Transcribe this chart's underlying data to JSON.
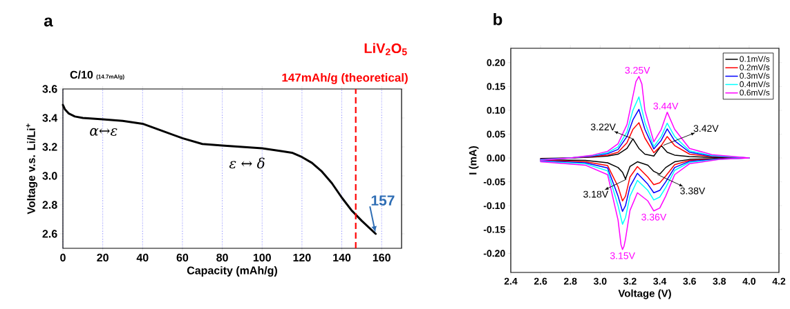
{
  "chart_data": [
    {
      "type": "line",
      "title": "C/10",
      "subtitle": "(14.7mA/g)",
      "xlabel": "Capacity (mAh/g)",
      "ylabel": "Voltage v.s. Li/Li$^{+}$",
      "x": [
        0,
        1,
        3,
        6,
        10,
        20,
        30,
        40,
        50,
        60,
        70,
        80,
        90,
        100,
        110,
        115,
        120,
        125,
        130,
        135,
        140,
        145,
        150,
        157
      ],
      "series": [
        {
          "color": "#000000",
          "values": [
            3.49,
            3.46,
            3.43,
            3.41,
            3.4,
            3.39,
            3.38,
            3.36,
            3.31,
            3.26,
            3.22,
            3.21,
            3.2,
            3.19,
            3.17,
            3.16,
            3.13,
            3.09,
            3.03,
            2.95,
            2.85,
            2.76,
            2.69,
            2.6
          ]
        }
      ],
      "xlim": [
        0,
        170
      ],
      "ylim": [
        2.5,
        3.6
      ],
      "xticks": [
        0,
        20,
        40,
        60,
        80,
        100,
        120,
        140,
        160
      ],
      "yticks": [
        2.6,
        2.8,
        {
          "value": 3.0,
          "label": "3.0"
        },
        3.2,
        3.4,
        3.6
      ],
      "grid": "x",
      "marker": "none",
      "line_style": "solid",
      "ref_lines": [
        {
          "axis": "x",
          "value": 147,
          "label": "147mAh/g (theoretical)",
          "color": "#ff0000",
          "line_style": "dashed"
        }
      ],
      "annotations": [
        "a",
        "LiV$_{2}$O$_{5}$",
        "α↔ε",
        "ε ↔ δ",
        {
          "text": "157",
          "x": 157,
          "y": 2.6
        }
      ]
    },
    {
      "type": "line",
      "xlabel": "Voltage (V)",
      "ylabel": "I (mA)",
      "series": [
        {
          "name": "0.1mV/s",
          "color": "#000000",
          "x": [
            2.6,
            2.8,
            2.95,
            3.05,
            3.12,
            3.18,
            3.22,
            3.26,
            3.3,
            3.36,
            3.41,
            3.45,
            3.5,
            3.6,
            3.75,
            4.0,
            4.0,
            3.8,
            3.6,
            3.5,
            3.44,
            3.4,
            3.36,
            3.32,
            3.25,
            3.2,
            3.17,
            3.15,
            3.12,
            3.05,
            2.9,
            2.6
          ],
          "values": [
            -0.001,
            0.0,
            0.002,
            0.004,
            0.008,
            0.02,
            0.04,
            0.02,
            0.008,
            0.004,
            0.026,
            0.012,
            0.006,
            0.003,
            0.001,
            0.0,
            0.0,
            -0.001,
            -0.003,
            -0.008,
            -0.02,
            -0.034,
            -0.028,
            -0.015,
            -0.008,
            -0.018,
            -0.044,
            -0.03,
            -0.02,
            -0.01,
            -0.005,
            -0.004
          ]
        },
        {
          "name": "0.2mV/s",
          "color": "#ff0000",
          "x": [
            2.6,
            2.8,
            2.95,
            3.05,
            3.12,
            3.18,
            3.22,
            3.26,
            3.3,
            3.36,
            3.41,
            3.45,
            3.5,
            3.6,
            3.75,
            4.0,
            4.0,
            3.8,
            3.6,
            3.5,
            3.44,
            3.4,
            3.36,
            3.32,
            3.25,
            3.2,
            3.17,
            3.15,
            3.12,
            3.05,
            2.9,
            2.6
          ],
          "values": [
            -0.002,
            0.0,
            0.003,
            0.006,
            0.012,
            0.032,
            0.06,
            0.074,
            0.042,
            0.011,
            0.026,
            0.045,
            0.026,
            0.008,
            0.003,
            0.0,
            0.0,
            -0.002,
            -0.005,
            -0.014,
            -0.038,
            -0.052,
            -0.056,
            -0.04,
            -0.018,
            -0.04,
            -0.08,
            -0.09,
            -0.06,
            -0.016,
            -0.008,
            -0.005
          ]
        },
        {
          "name": "0.3mV/s",
          "color": "#0000ff",
          "x": [
            2.6,
            2.8,
            2.95,
            3.05,
            3.12,
            3.18,
            3.22,
            3.26,
            3.3,
            3.36,
            3.41,
            3.45,
            3.5,
            3.6,
            3.75,
            4.0,
            4.0,
            3.8,
            3.6,
            3.5,
            3.44,
            3.4,
            3.36,
            3.32,
            3.25,
            3.2,
            3.17,
            3.15,
            3.12,
            3.05,
            2.9,
            2.6
          ],
          "values": [
            -0.003,
            0.0,
            0.004,
            0.009,
            0.018,
            0.045,
            0.08,
            0.102,
            0.06,
            0.019,
            0.037,
            0.061,
            0.036,
            0.012,
            0.004,
            0.0,
            0.0,
            -0.002,
            -0.007,
            -0.02,
            -0.05,
            -0.068,
            -0.073,
            -0.055,
            -0.032,
            -0.06,
            -0.1,
            -0.112,
            -0.08,
            -0.021,
            -0.01,
            -0.006
          ]
        },
        {
          "name": "0.4mV/s",
          "color": "#00ffff",
          "x": [
            2.6,
            2.8,
            2.95,
            3.05,
            3.12,
            3.18,
            3.22,
            3.26,
            3.3,
            3.36,
            3.41,
            3.45,
            3.5,
            3.6,
            3.75,
            4.0,
            4.0,
            3.8,
            3.6,
            3.5,
            3.44,
            3.4,
            3.36,
            3.32,
            3.25,
            3.2,
            3.17,
            3.15,
            3.12,
            3.05,
            2.9,
            2.6
          ],
          "values": [
            -0.004,
            0.0,
            0.005,
            0.011,
            0.023,
            0.055,
            0.1,
            0.128,
            0.075,
            0.024,
            0.045,
            0.073,
            0.045,
            0.015,
            0.005,
            0.0,
            0.0,
            -0.003,
            -0.009,
            -0.026,
            -0.062,
            -0.082,
            -0.088,
            -0.068,
            -0.047,
            -0.08,
            -0.125,
            -0.139,
            -0.1,
            -0.027,
            -0.012,
            -0.007
          ]
        },
        {
          "name": "0.6mV/s",
          "color": "#ff00ff",
          "x": [
            2.6,
            2.8,
            2.95,
            3.05,
            3.12,
            3.18,
            3.22,
            3.24,
            3.26,
            3.28,
            3.3,
            3.36,
            3.41,
            3.45,
            3.5,
            3.6,
            3.75,
            4.0,
            4.0,
            3.8,
            3.6,
            3.5,
            3.44,
            3.4,
            3.36,
            3.32,
            3.25,
            3.2,
            3.17,
            3.16,
            3.15,
            3.14,
            3.12,
            3.05,
            2.9,
            2.6
          ],
          "values": [
            -0.005,
            0.0,
            0.006,
            0.014,
            0.03,
            0.07,
            0.13,
            0.16,
            0.171,
            0.155,
            0.1,
            0.034,
            0.06,
            0.096,
            0.06,
            0.02,
            0.007,
            0.0,
            0.0,
            -0.003,
            -0.012,
            -0.035,
            -0.08,
            -0.105,
            -0.111,
            -0.09,
            -0.073,
            -0.11,
            -0.17,
            -0.185,
            -0.192,
            -0.182,
            -0.13,
            -0.035,
            -0.015,
            -0.008
          ]
        }
      ],
      "xlim": [
        2.4,
        4.2
      ],
      "ylim": [
        -0.24,
        0.23
      ],
      "xticks": [
        2.4,
        2.6,
        2.8,
        {
          "value": 3.0,
          "label": "3.0"
        },
        3.2,
        3.4,
        3.6,
        3.8,
        {
          "value": 4.0,
          "label": "4.0"
        },
        4.2
      ],
      "yticks": [
        {
          "value": -0.2,
          "label": "-0.20"
        },
        {
          "value": -0.15,
          "label": "-0.15"
        },
        {
          "value": -0.1,
          "label": "-0.10"
        },
        {
          "value": -0.05,
          "label": "-0.05"
        },
        {
          "value": 0,
          "label": "0.00"
        },
        {
          "value": 0.05,
          "label": "0.05"
        },
        {
          "value": 0.1,
          "label": "0.10"
        },
        {
          "value": 0.15,
          "label": "0.15"
        },
        {
          "value": 0.2,
          "label": "0.20"
        }
      ],
      "legend": "top right",
      "marker": "none",
      "line_style": "solid",
      "annotations": [
        "b",
        {
          "text": "3.25V",
          "x": 3.25,
          "y": 0.171
        },
        {
          "text": "3.44V",
          "x": 3.44,
          "y": 0.096
        },
        {
          "text": "3.22V",
          "x": 3.22,
          "y": 0.04
        },
        {
          "text": "3.42V",
          "x": 3.42,
          "y": 0.026
        },
        {
          "text": "3.18V",
          "x": 3.18,
          "y": -0.044
        },
        {
          "text": "3.38V",
          "x": 3.38,
          "y": -0.034
        },
        {
          "text": "3.36V",
          "x": 3.36,
          "y": -0.111
        },
        {
          "text": "3.15V",
          "x": 3.15,
          "y": -0.192
        }
      ]
    }
  ]
}
